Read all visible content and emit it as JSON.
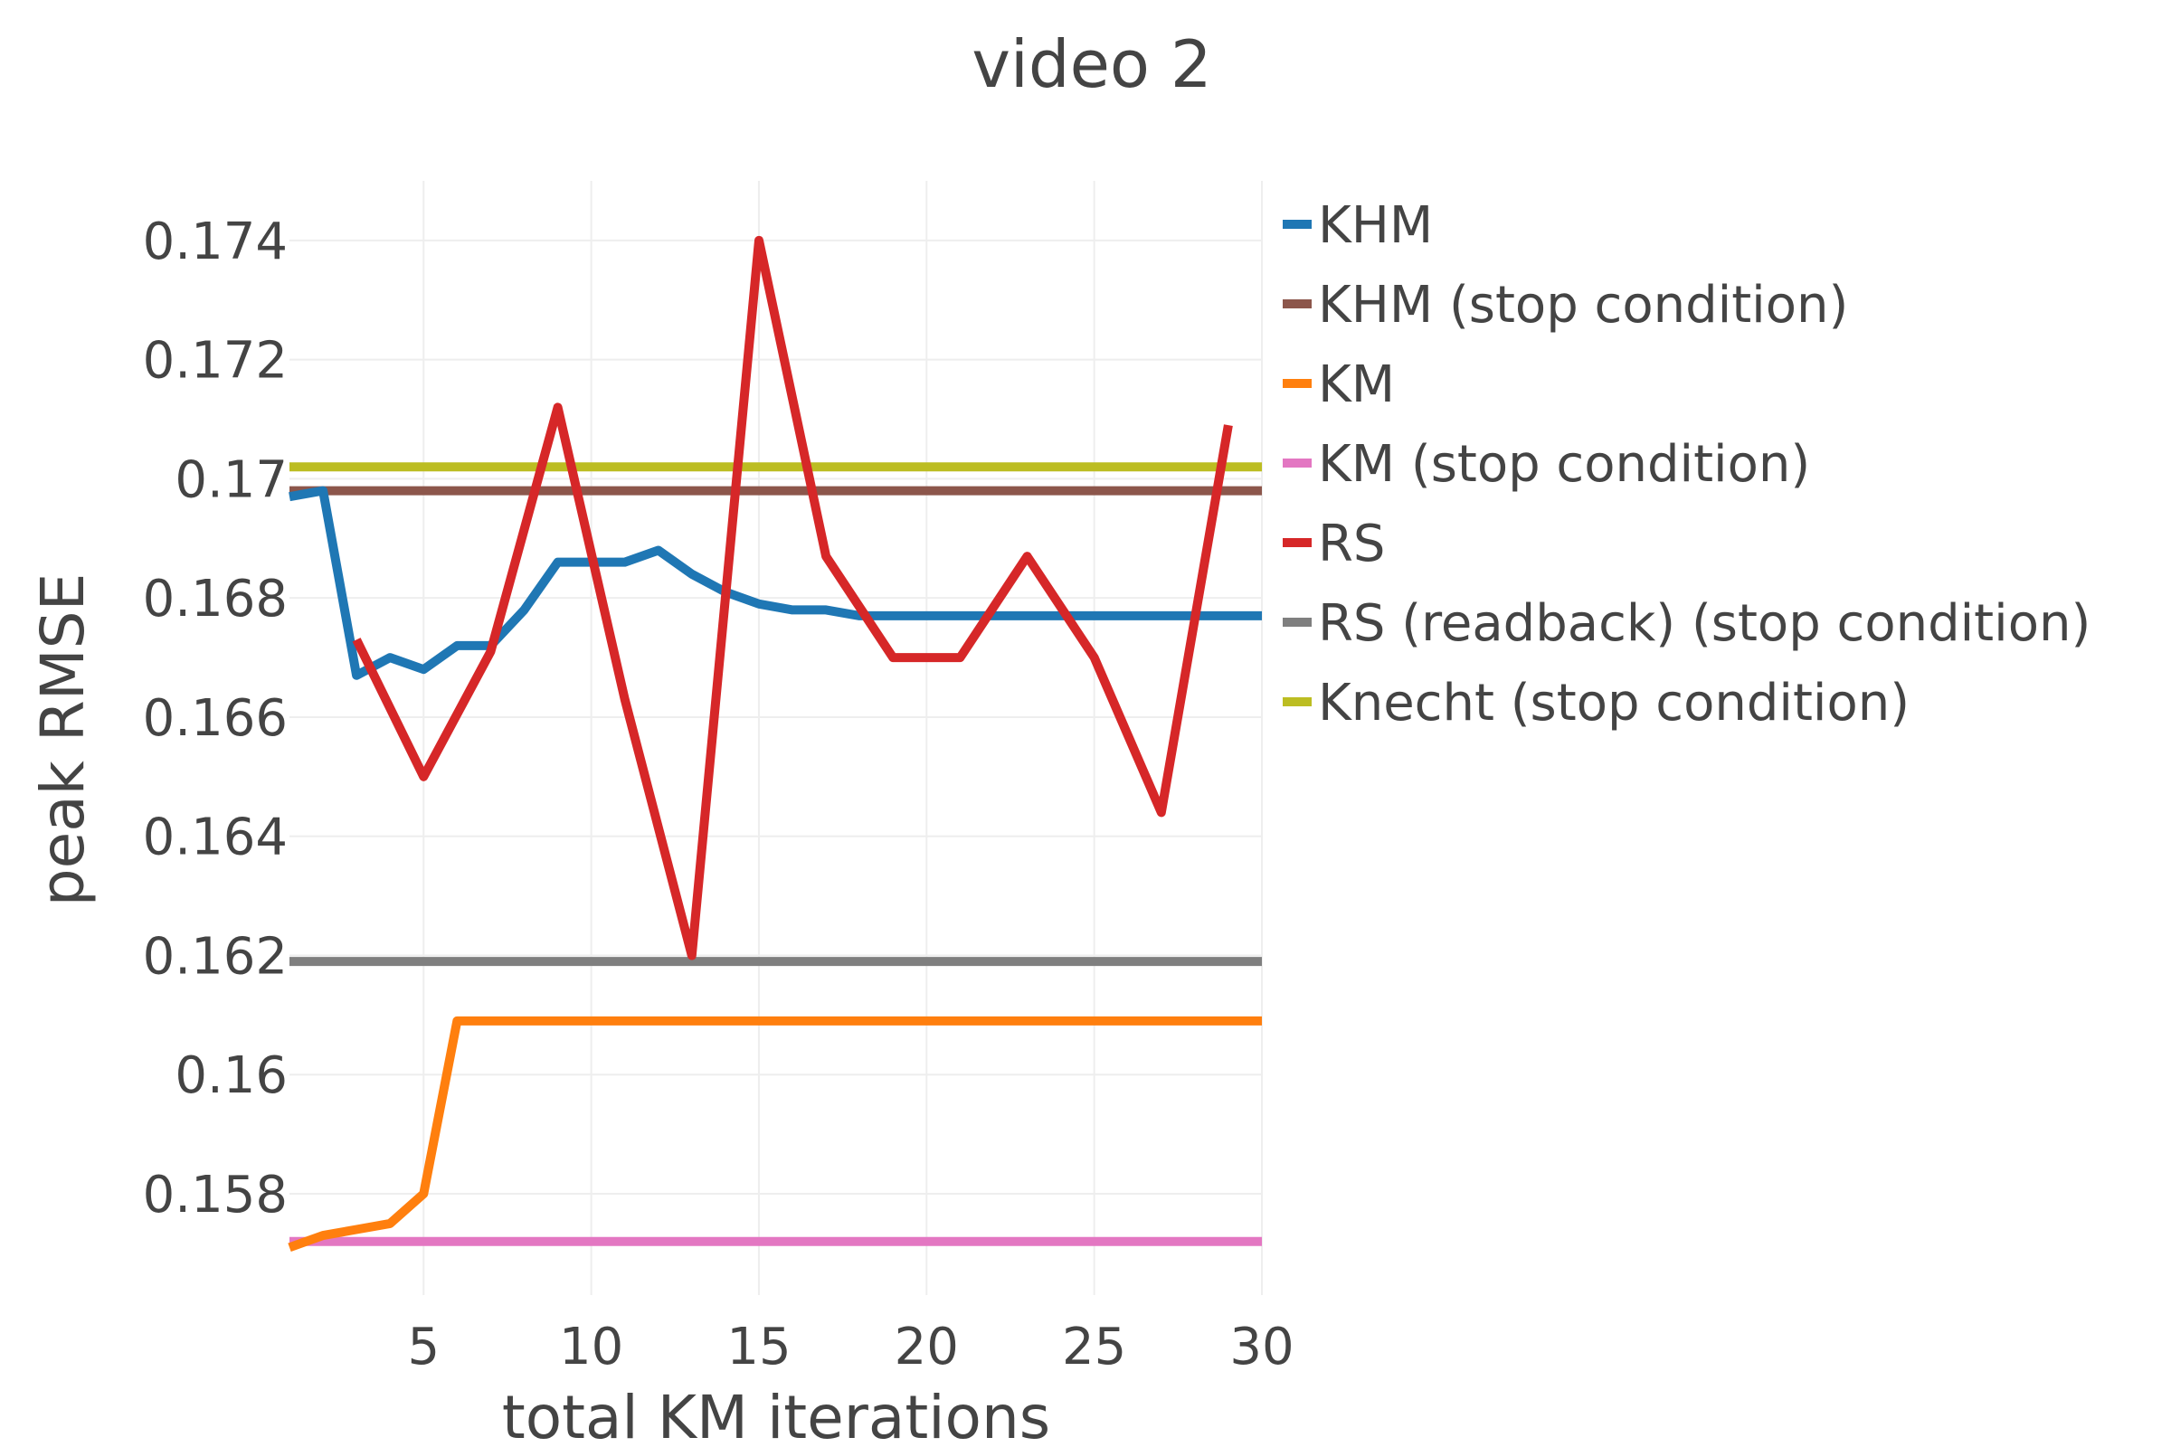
{
  "chart_data": {
    "type": "line",
    "title": "video 2",
    "xlabel": "total KM iterations",
    "ylabel": "peak RMSE",
    "xlim": [
      1,
      30
    ],
    "ylim": [
      0.1563,
      0.175
    ],
    "xticks": [
      5,
      10,
      15,
      20,
      25,
      30
    ],
    "xtick_labels": [
      "5",
      "10",
      "15",
      "20",
      "25",
      "30"
    ],
    "yticks": [
      0.158,
      0.16,
      0.162,
      0.164,
      0.166,
      0.168,
      0.17,
      0.172,
      0.174
    ],
    "ytick_labels": [
      "0.158",
      "0.16",
      "0.162",
      "0.164",
      "0.166",
      "0.168",
      "0.17",
      "0.172",
      "0.174"
    ],
    "grid": true,
    "legend_position": "right",
    "series": [
      {
        "name": "KHM",
        "color": "#1f77b4",
        "x": [
          1,
          2,
          3,
          4,
          5,
          6,
          7,
          8,
          9,
          10,
          11,
          12,
          13,
          14,
          15,
          16,
          17,
          18,
          19,
          20,
          21,
          22,
          23,
          24,
          25,
          26,
          27,
          28,
          29,
          30
        ],
        "y": [
          0.1697,
          0.1698,
          0.1667,
          0.167,
          0.1668,
          0.1672,
          0.1672,
          0.1678,
          0.1686,
          0.1686,
          0.1686,
          0.1688,
          0.1684,
          0.1681,
          0.1679,
          0.1678,
          0.1678,
          0.1677,
          0.1677,
          0.1677,
          0.1677,
          0.1677,
          0.1677,
          0.1677,
          0.1677,
          0.1677,
          0.1677,
          0.1677,
          0.1677,
          0.1677
        ]
      },
      {
        "name": "KHM (stop condition)",
        "color": "#8c564b",
        "x": [
          1,
          30
        ],
        "y": [
          0.1698,
          0.1698
        ]
      },
      {
        "name": "KM",
        "color": "#ff7f0e",
        "x": [
          1,
          2,
          3,
          4,
          5,
          6,
          7,
          8,
          9,
          10,
          11,
          12,
          13,
          14,
          15,
          16,
          17,
          18,
          19,
          20,
          21,
          22,
          23,
          24,
          25,
          26,
          27,
          28,
          29,
          30
        ],
        "y": [
          0.1571,
          0.1573,
          0.1574,
          0.1575,
          0.158,
          0.1609,
          0.1609,
          0.1609,
          0.1609,
          0.1609,
          0.1609,
          0.1609,
          0.1609,
          0.1609,
          0.1609,
          0.1609,
          0.1609,
          0.1609,
          0.1609,
          0.1609,
          0.1609,
          0.1609,
          0.1609,
          0.1609,
          0.1609,
          0.1609,
          0.1609,
          0.1609,
          0.1609,
          0.1609
        ]
      },
      {
        "name": "KM (stop condition)",
        "color": "#e377c2",
        "x": [
          1,
          30
        ],
        "y": [
          0.1572,
          0.1572
        ]
      },
      {
        "name": "RS",
        "color": "#d62728",
        "x": [
          3,
          5,
          7,
          9,
          11,
          13,
          15,
          17,
          19,
          21,
          23,
          25,
          27,
          29
        ],
        "y": [
          0.1673,
          0.165,
          0.1671,
          0.1712,
          0.1663,
          0.162,
          0.174,
          0.1687,
          0.167,
          0.167,
          0.1687,
          0.167,
          0.1644,
          0.1709
        ]
      },
      {
        "name": "RS (readback) (stop condition)",
        "color": "#7f7f7f",
        "x": [
          1,
          30
        ],
        "y": [
          0.1619,
          0.1619
        ]
      },
      {
        "name": "Knecht (stop condition)",
        "color": "#bcbd22",
        "x": [
          1,
          30
        ],
        "y": [
          0.1702,
          0.1702
        ]
      }
    ]
  }
}
